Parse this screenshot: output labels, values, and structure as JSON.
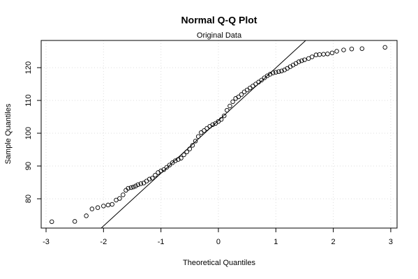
{
  "chart_data": {
    "type": "qq",
    "title": "Normal Q-Q Plot",
    "subtitle": "Original Data",
    "x_label": "Theoretical Quantiles",
    "y_label": "Sample Quantiles",
    "xlim": [
      -3.085,
      3.11
    ],
    "ylim": [
      71.06,
      128.3
    ],
    "xticks": [
      -3,
      -2,
      -1,
      0,
      1,
      2,
      3
    ],
    "yticks": [
      80,
      90,
      100,
      110,
      120
    ],
    "grid": true,
    "color": "#000000",
    "reference_line": {
      "intercept": 103.86,
      "slope": 16.08
    },
    "x": [
      -2.9,
      -2.5,
      -2.3,
      -2.2,
      -2.1,
      -2.0,
      -1.92,
      -1.85,
      -1.78,
      -1.72,
      -1.66,
      -1.61,
      -1.57,
      -1.52,
      -1.48,
      -1.44,
      -1.4,
      -1.35,
      -1.3,
      -1.25,
      -1.2,
      -1.15,
      -1.1,
      -1.05,
      -1.0,
      -0.95,
      -0.9,
      -0.85,
      -0.8,
      -0.75,
      -0.7,
      -0.65,
      -0.6,
      -0.55,
      -0.5,
      -0.45,
      -0.4,
      -0.35,
      -0.3,
      -0.25,
      -0.2,
      -0.15,
      -0.1,
      -0.05,
      0,
      0.05,
      0.1,
      0.15,
      0.2,
      0.25,
      0.3,
      0.35,
      0.4,
      0.45,
      0.5,
      0.55,
      0.6,
      0.65,
      0.7,
      0.75,
      0.8,
      0.85,
      0.9,
      0.95,
      1.0,
      1.05,
      1.1,
      1.15,
      1.2,
      1.25,
      1.3,
      1.35,
      1.4,
      1.45,
      1.5,
      1.57,
      1.63,
      1.7,
      1.76,
      1.83,
      1.9,
      1.98,
      2.06,
      2.18,
      2.32,
      2.5,
      2.9
    ],
    "values": [
      73,
      73.1,
      74.8,
      76.9,
      77.3,
      77.8,
      78.1,
      78.3,
      79.6,
      80.1,
      81.2,
      82.6,
      83.2,
      83.4,
      83.6,
      83.9,
      84.3,
      84.6,
      84.8,
      85.4,
      86,
      86.3,
      87.2,
      88,
      88.5,
      88.9,
      89.6,
      90.3,
      91,
      91.6,
      92,
      92.4,
      93.4,
      94.3,
      95.2,
      96.3,
      97.6,
      99,
      100.2,
      100.8,
      101.5,
      102.1,
      102.6,
      103,
      103.6,
      104.2,
      105.3,
      107,
      108.3,
      109.6,
      110.6,
      111.1,
      111.8,
      112.6,
      113.2,
      113.8,
      114.4,
      115,
      115.6,
      116.2,
      116.9,
      117.5,
      118,
      118.4,
      118.6,
      118.8,
      119,
      119.3,
      119.8,
      120.3,
      120.8,
      121.3,
      121.8,
      122.1,
      122.4,
      122.8,
      123.3,
      123.9,
      124,
      124.1,
      124.2,
      124.5,
      125,
      125.4,
      125.7,
      125.8,
      126.2
    ]
  }
}
